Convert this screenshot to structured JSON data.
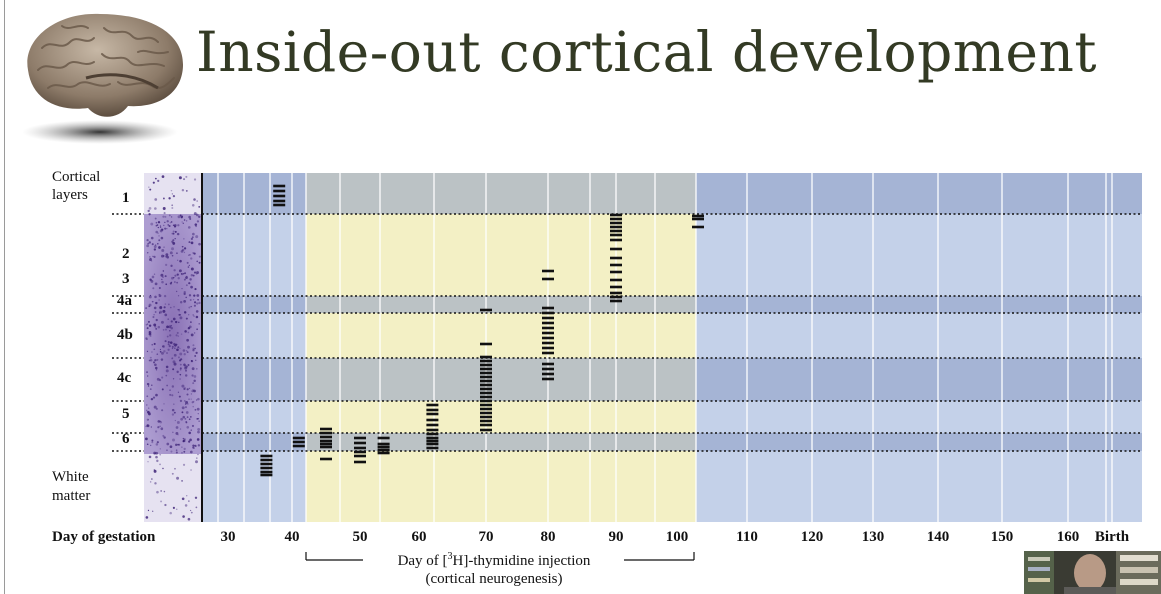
{
  "title": "Inside-out cortical development",
  "chart_data": {
    "type": "scatter",
    "title": "Inside-out cortical development",
    "ylabel": "Cortical layers",
    "xlabel": "Day of gestation",
    "x_ticks": [
      "30",
      "40",
      "50",
      "60",
      "70",
      "80",
      "90",
      "100",
      "110",
      "120",
      "130",
      "140",
      "150",
      "160",
      "Birth"
    ],
    "x_tick_values": [
      30,
      40,
      50,
      60,
      70,
      80,
      90,
      100,
      110,
      120,
      130,
      140,
      150,
      160,
      165
    ],
    "xlim": [
      26,
      167
    ],
    "neurogenesis_window": [
      42,
      103
    ],
    "layer_labels": [
      "1",
      "2",
      "3",
      "4a",
      "4b",
      "4c",
      "5",
      "6",
      "White matter"
    ],
    "shaded_layers": [
      "1",
      "4a",
      "4c",
      "6"
    ],
    "injection_days": [
      38,
      36,
      41,
      45,
      50,
      54,
      62,
      70,
      80,
      90,
      103
    ],
    "injection_label": "Day of [3H]-thymidine injection",
    "injection_label_prefix": "Day of [",
    "injection_label_sup": "3",
    "injection_label_suffix": "H]-thymidine injection",
    "injection_sublabel": "(cortical neurogenesis)"
  },
  "labels": {
    "cortical": "Cortical",
    "layers": "layers",
    "white": "White",
    "matter": "matter"
  }
}
